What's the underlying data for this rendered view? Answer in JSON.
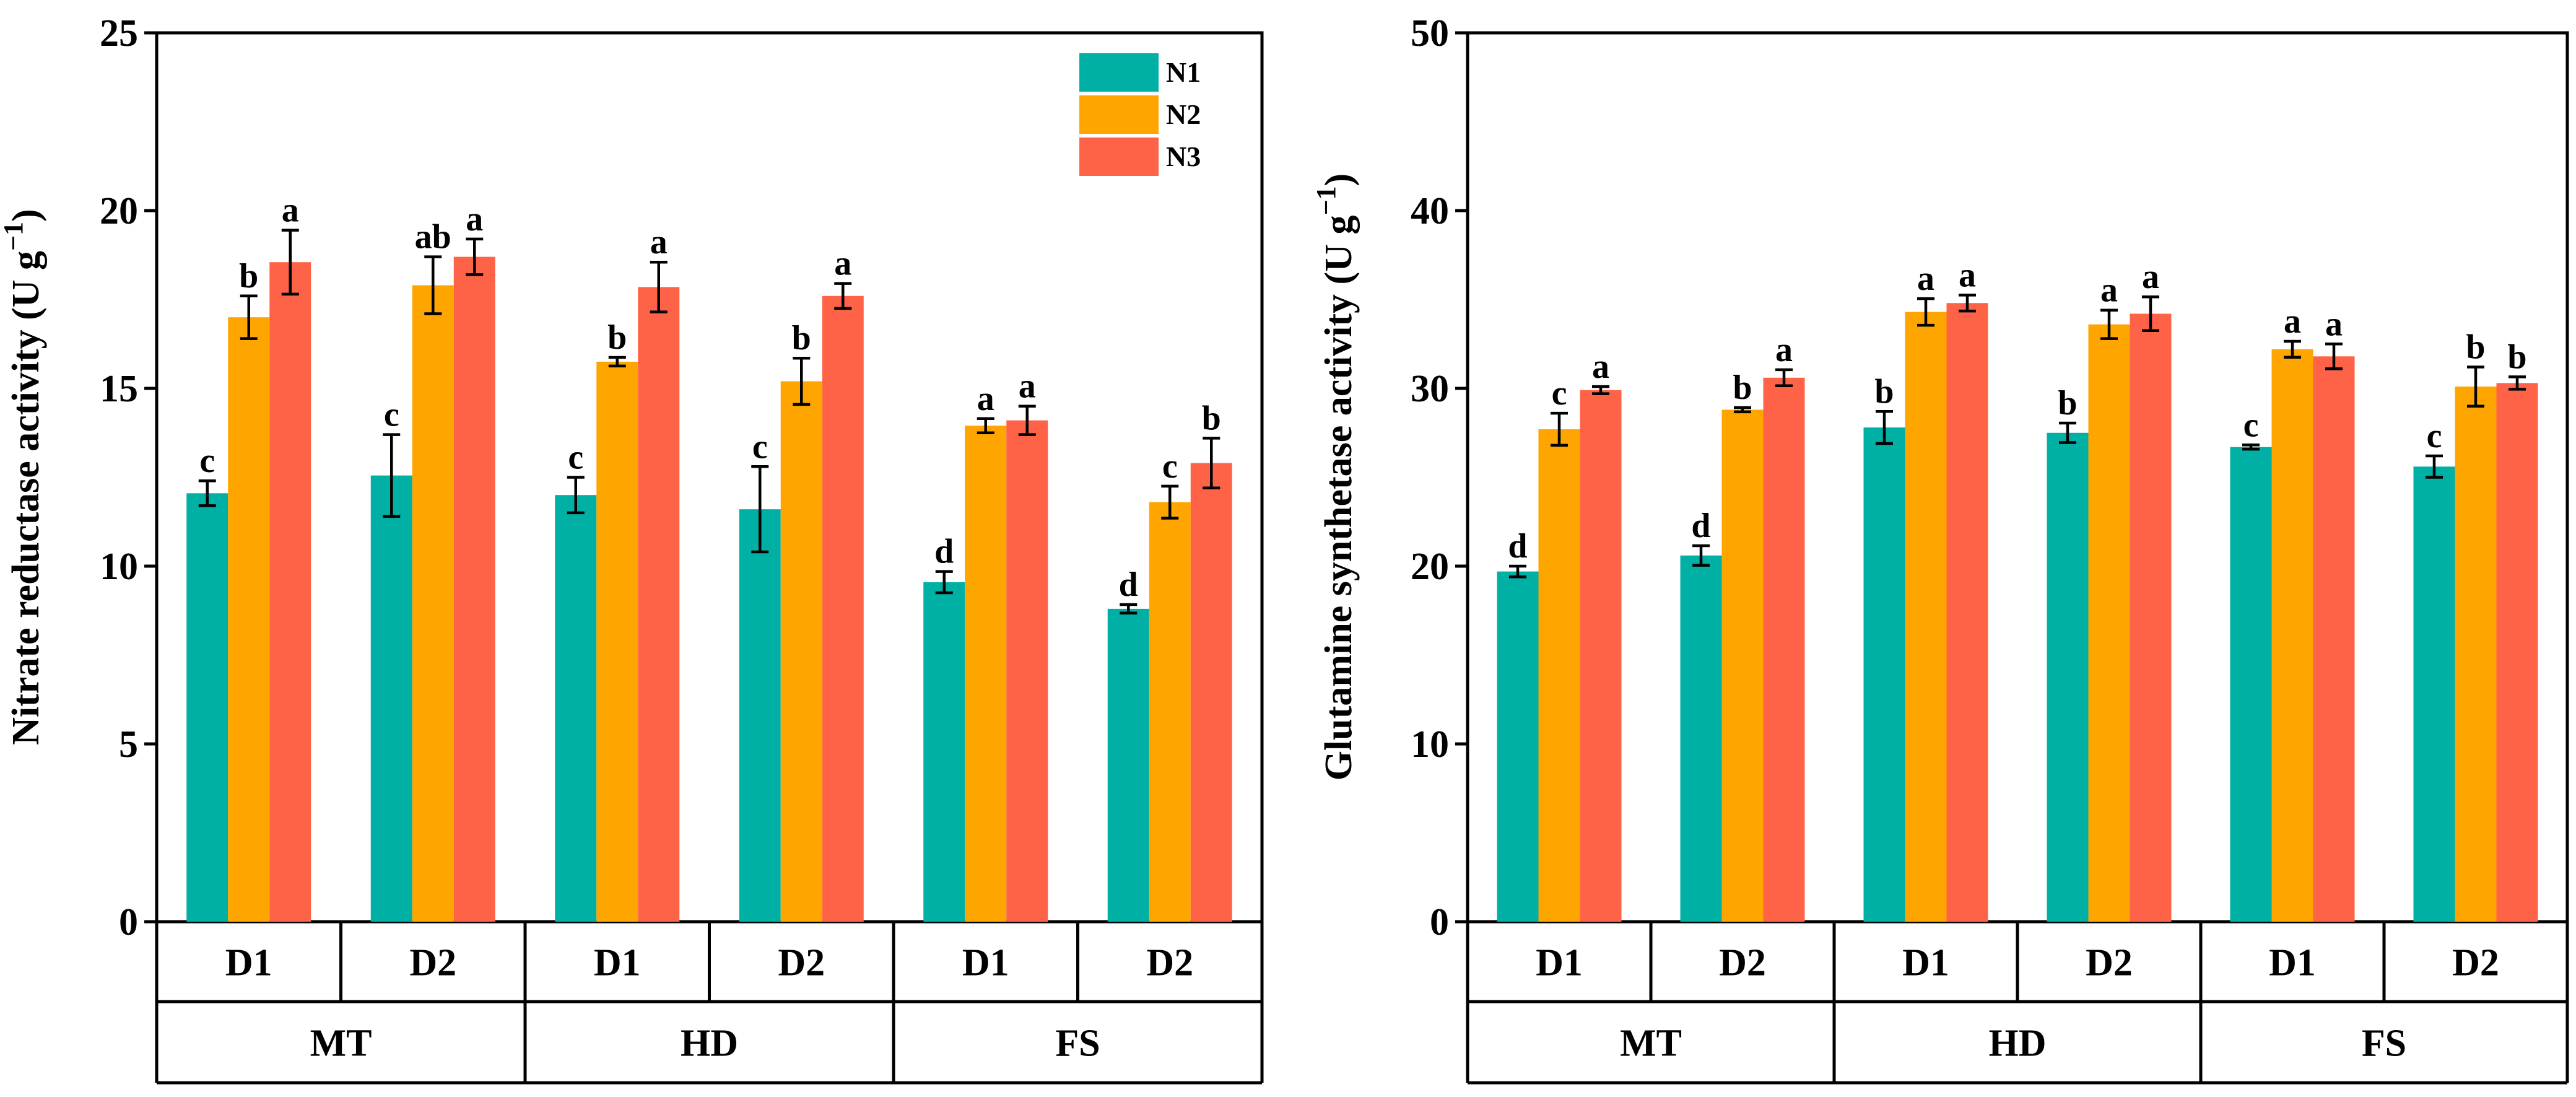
{
  "chart_data": [
    {
      "type": "bar",
      "ylabel": "Nitrate reductase activity (U g−1)",
      "ylabel_main": "Nitrate reductase activity (U g",
      "ylabel_sup": "−1",
      "ylabel_close": ")",
      "ylim": [
        0,
        25
      ],
      "yticks": [
        0,
        5,
        10,
        15,
        20,
        25
      ],
      "groups": [
        "MT",
        "HD",
        "FS"
      ],
      "subgroups": [
        "D1",
        "D2"
      ],
      "series": [
        {
          "name": "N1",
          "color": "#00b0a5",
          "values": [
            12.05,
            12.55,
            12.0,
            11.6,
            9.55,
            8.8
          ],
          "errors": [
            0.35,
            1.15,
            0.5,
            1.2,
            0.3,
            0.12
          ],
          "letters": [
            "c",
            "c",
            "c",
            "c",
            "d",
            "d"
          ]
        },
        {
          "name": "N2",
          "color": "#ffa500",
          "values": [
            17.0,
            17.9,
            15.75,
            15.2,
            13.95,
            11.8
          ],
          "errors": [
            0.6,
            0.8,
            0.12,
            0.65,
            0.2,
            0.45
          ],
          "letters": [
            "b",
            "ab",
            "b",
            "b",
            "a",
            "c"
          ]
        },
        {
          "name": "N3",
          "color": "#ff6347",
          "values": [
            18.55,
            18.7,
            17.85,
            17.6,
            14.1,
            12.9
          ],
          "errors": [
            0.9,
            0.5,
            0.7,
            0.35,
            0.4,
            0.7
          ],
          "letters": [
            "a",
            "a",
            "a",
            "a",
            "a",
            "b"
          ]
        }
      ],
      "legend": {
        "position": "top-right",
        "entries": [
          "N1",
          "N2",
          "N3"
        ]
      }
    },
    {
      "type": "bar",
      "ylabel": "Glutamine synthetase activity (U g−1)",
      "ylabel_main": "Glutamine synthetase activity (U g",
      "ylabel_sup": "−1",
      "ylabel_close": ")",
      "ylim": [
        0,
        50
      ],
      "yticks": [
        0,
        10,
        20,
        30,
        40,
        50
      ],
      "groups": [
        "MT",
        "HD",
        "FS"
      ],
      "subgroups": [
        "D1",
        "D2"
      ],
      "series": [
        {
          "name": "N1",
          "color": "#00b0a5",
          "values": [
            19.7,
            20.6,
            27.8,
            27.5,
            26.7,
            25.6
          ],
          "errors": [
            0.3,
            0.55,
            0.9,
            0.55,
            0.12,
            0.6
          ],
          "letters": [
            "d",
            "d",
            "b",
            "b",
            "c",
            "c"
          ]
        },
        {
          "name": "N2",
          "color": "#ffa500",
          "values": [
            27.7,
            28.8,
            34.3,
            33.6,
            32.2,
            30.1
          ],
          "errors": [
            0.9,
            0.12,
            0.75,
            0.8,
            0.45,
            1.1
          ],
          "letters": [
            "c",
            "b",
            "a",
            "a",
            "a",
            "b"
          ]
        },
        {
          "name": "N3",
          "color": "#ff6347",
          "values": [
            29.9,
            30.6,
            34.8,
            34.2,
            31.8,
            30.3
          ],
          "errors": [
            0.2,
            0.45,
            0.45,
            0.95,
            0.7,
            0.35
          ],
          "letters": [
            "a",
            "a",
            "a",
            "a",
            "a",
            "b"
          ]
        }
      ]
    }
  ]
}
